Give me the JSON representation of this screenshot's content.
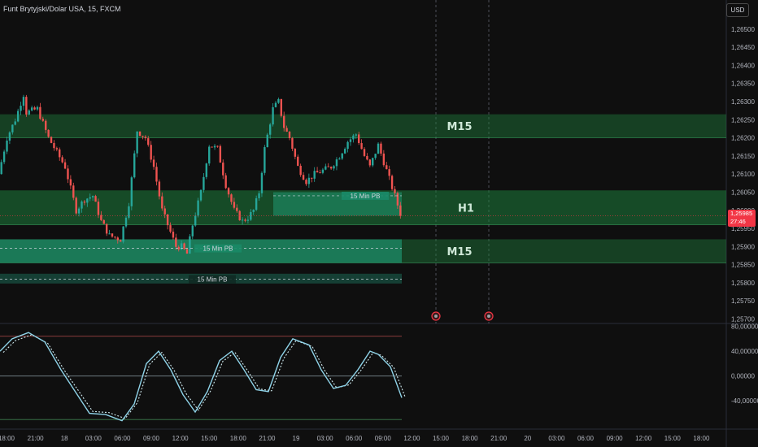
{
  "header": {
    "title": "Funt Brytyjski/Dolar USA, 15, FXCM"
  },
  "currency_badge": "USD",
  "price_tag": {
    "price": "1,25985",
    "countdown": "27:46",
    "color": "#f23645"
  },
  "colors": {
    "up": "#26a69a",
    "down": "#ef5350",
    "zone": "#1e7d3c",
    "oscillator": "#8fd3e8"
  },
  "zones": [
    {
      "label": "M15",
      "top": 1.26265,
      "bottom": 1.262
    },
    {
      "label": "H1",
      "top": 1.26055,
      "bottom": 1.2596
    },
    {
      "label": "M15",
      "top": 1.2592,
      "bottom": 1.25855
    }
  ],
  "pb_lines": [
    {
      "label": "15 Min PB",
      "price": 1.2604
    },
    {
      "label": "15 Min PB",
      "price": 1.25895
    },
    {
      "label": "15 Min PB",
      "price": 1.2581
    }
  ],
  "chart_data": {
    "type": "candlestick",
    "y_ticks": [
      "1,26500",
      "1,26450",
      "1,26400",
      "1,26350",
      "1,26300",
      "1,26250",
      "1,26200",
      "1,26150",
      "1,26100",
      "1,26050",
      "1,26000",
      "1,25950",
      "1,25900",
      "1,25850",
      "1,25800",
      "1,25750",
      "1,25700"
    ],
    "y_range": [
      1.2569,
      1.2654
    ],
    "x_ticks": [
      "18:00",
      "21:00",
      "18",
      "03:00",
      "06:00",
      "09:00",
      "12:00",
      "15:00",
      "18:00",
      "21:00",
      "19",
      "03:00",
      "06:00",
      "09:00",
      "12:00",
      "15:00",
      "18:00",
      "21:00",
      "20",
      "03:00",
      "06:00",
      "09:00",
      "12:00",
      "15:00",
      "18:00"
    ],
    "price_path": [
      [
        0,
        1.261
      ],
      [
        3,
        1.262
      ],
      [
        6,
        1.2625
      ],
      [
        9,
        1.2632
      ],
      [
        10,
        1.2627
      ],
      [
        14,
        1.2628
      ],
      [
        18,
        1.262
      ],
      [
        24,
        1.2612
      ],
      [
        28,
        1.26
      ],
      [
        31,
        1.2603
      ],
      [
        34,
        1.2604
      ],
      [
        37,
        1.2597
      ],
      [
        40,
        1.2593
      ],
      [
        44,
        1.2592
      ],
      [
        47,
        1.2602
      ],
      [
        50,
        1.2622
      ],
      [
        53,
        1.262
      ],
      [
        56,
        1.2612
      ],
      [
        59,
        1.26
      ],
      [
        62,
        1.2594
      ],
      [
        64,
        1.259
      ],
      [
        66,
        1.259
      ],
      [
        68,
        1.2588
      ],
      [
        70,
        1.2596
      ],
      [
        73,
        1.2605
      ],
      [
        76,
        1.2618
      ],
      [
        79,
        1.2617
      ],
      [
        82,
        1.2607
      ],
      [
        85,
        1.26
      ],
      [
        88,
        1.2597
      ],
      [
        90,
        1.2598
      ],
      [
        92,
        1.26
      ],
      [
        94,
        1.2605
      ],
      [
        96,
        1.2617
      ],
      [
        99,
        1.2628
      ],
      [
        101,
        1.263
      ],
      [
        103,
        1.2623
      ],
      [
        105,
        1.262
      ],
      [
        108,
        1.2612
      ],
      [
        111,
        1.2608
      ],
      [
        114,
        1.261
      ],
      [
        117,
        1.2611
      ],
      [
        120,
        1.2612
      ],
      [
        123,
        1.2615
      ],
      [
        126,
        1.2619
      ],
      [
        129,
        1.2621
      ],
      [
        132,
        1.2615
      ],
      [
        134,
        1.2612
      ],
      [
        137,
        1.2618
      ],
      [
        140,
        1.2611
      ],
      [
        143,
        1.2604
      ],
      [
        145,
        1.2599
      ]
    ],
    "oscillator_ticks": [
      "80,00000",
      "40,00000",
      "0,00000",
      "-40,00000"
    ],
    "oscillator_range": [
      -75,
      82
    ]
  }
}
